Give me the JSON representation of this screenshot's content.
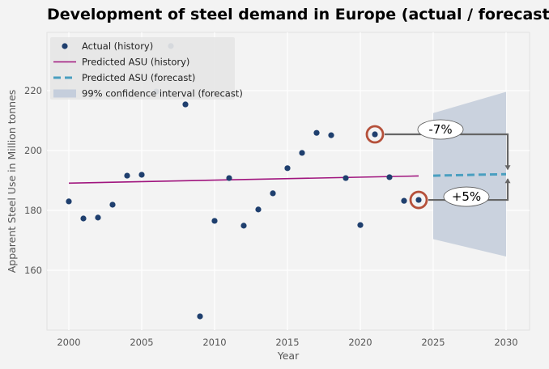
{
  "chart_data": {
    "type": "scatter",
    "title": "Development of steel demand in Europe (actual / forecast)",
    "xlabel": "Year",
    "ylabel": "Apparent Steel Use in Million tonnes",
    "xlim": [
      1998.5,
      2031.4
    ],
    "ylim": [
      141,
      240
    ],
    "xticks": [
      2000,
      2005,
      2010,
      2015,
      2020,
      2025,
      2030
    ],
    "yticks": [
      160,
      180,
      200,
      220
    ],
    "grid": true,
    "legend_position": "top-left",
    "legend": [
      {
        "label": "Actual (history)",
        "kind": "marker"
      },
      {
        "label": "Predicted ASU (history)",
        "kind": "line"
      },
      {
        "label": "Predicted ASU (forecast)",
        "kind": "dashed-line"
      },
      {
        "label": "99% confidence interval (forecast)",
        "kind": "band"
      }
    ],
    "series": [
      {
        "name": "Actual (history)",
        "type": "scatter",
        "color": "#1f3f6e",
        "x": [
          2000,
          2001,
          2002,
          2003,
          2004,
          2005,
          2006,
          2007,
          2008,
          2009,
          2010,
          2011,
          2012,
          2013,
          2014,
          2015,
          2016,
          2017,
          2018,
          2019,
          2020,
          2021,
          2022,
          2023,
          2024
        ],
        "y": [
          183.0,
          177.3,
          177.6,
          181.9,
          191.6,
          191.9,
          219.7,
          234.9,
          215.4,
          144.6,
          176.5,
          190.8,
          174.9,
          180.3,
          185.7,
          194.1,
          199.2,
          205.9,
          205.1,
          190.8,
          175.1,
          205.4,
          191.1,
          183.2,
          183.5
        ]
      },
      {
        "name": "Predicted ASU (history)",
        "type": "line",
        "color": "#a0157e",
        "x": [
          2000,
          2024
        ],
        "y": [
          189.1,
          191.5
        ]
      },
      {
        "name": "Predicted ASU (forecast)",
        "type": "dashed-line",
        "color": "#4a9fc0",
        "x": [
          2025,
          2030
        ],
        "y": [
          191.6,
          192.1
        ]
      },
      {
        "name": "99% confidence interval (forecast)",
        "type": "band",
        "color": "#c5cedc",
        "x": [
          2025,
          2030
        ],
        "upper": [
          212.5,
          219.6
        ],
        "lower": [
          170.4,
          164.6
        ]
      }
    ],
    "annotations": [
      {
        "label": "-7%",
        "circled_point": {
          "x": 2021,
          "y": 205.4
        },
        "arrow_to": {
          "x": 2030,
          "y": 192.1
        },
        "direction": "down"
      },
      {
        "label": "+5%",
        "circled_point": {
          "x": 2024,
          "y": 183.5
        },
        "arrow_to": {
          "x": 2030,
          "y": 192.1
        },
        "direction": "up"
      }
    ],
    "colors": {
      "background": "#f3f3f3",
      "highlight_circle": "#b5503a",
      "annotation_line": "#666666"
    }
  }
}
